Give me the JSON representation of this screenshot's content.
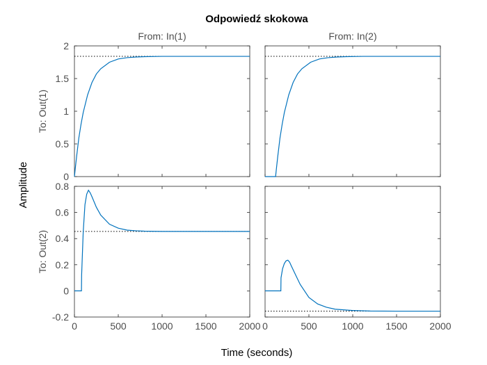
{
  "chart_data": {
    "type": "line",
    "title": "Odpowiedź skokowa",
    "xlabel": "Time (seconds)",
    "ylabel": "Amplitude",
    "grid": false,
    "colors": {
      "trace": "#0072bd",
      "reference": "#000000"
    },
    "columns": [
      "From: In(1)",
      "From: In(2)"
    ],
    "rows": [
      {
        "label": "To: Out(1)",
        "ylim": [
          0,
          2
        ],
        "yticks": [
          "0",
          "0.5",
          "1",
          "1.5",
          "2"
        ],
        "ytick_values": [
          0,
          0.5,
          1,
          1.5,
          2
        ]
      },
      {
        "label": "To: Out(2)",
        "ylim": [
          -0.2,
          0.8
        ],
        "yticks": [
          "-0.2",
          "0",
          "0.2",
          "0.4",
          "0.6",
          "0.8"
        ],
        "ytick_values": [
          -0.2,
          0,
          0.2,
          0.4,
          0.6,
          0.8
        ]
      }
    ],
    "xlim": [
      0,
      2000
    ],
    "xticks": [
      "0",
      "500",
      "1000",
      "1500",
      "2000"
    ],
    "xtick_values": [
      0,
      500,
      1000,
      1500,
      2000
    ],
    "subplots": [
      {
        "row": 0,
        "col": 0,
        "final_value": 1.84,
        "x": [
          0,
          10,
          25,
          50,
          75,
          100,
          150,
          200,
          250,
          300,
          400,
          500,
          600,
          700,
          800,
          1000,
          1200,
          1500,
          2000
        ],
        "y": [
          0,
          0.13,
          0.31,
          0.59,
          0.8,
          0.98,
          1.25,
          1.44,
          1.57,
          1.65,
          1.75,
          1.8,
          1.82,
          1.83,
          1.835,
          1.84,
          1.84,
          1.84,
          1.84
        ]
      },
      {
        "row": 0,
        "col": 1,
        "final_value": 1.84,
        "x": [
          0,
          120,
          130,
          145,
          170,
          195,
          220,
          270,
          320,
          370,
          420,
          520,
          620,
          720,
          820,
          920,
          1120,
          1500,
          2000
        ],
        "y": [
          0,
          0,
          0.13,
          0.31,
          0.59,
          0.8,
          0.98,
          1.25,
          1.44,
          1.57,
          1.65,
          1.75,
          1.8,
          1.82,
          1.83,
          1.835,
          1.84,
          1.84,
          1.84
        ]
      },
      {
        "row": 1,
        "col": 0,
        "final_value": 0.455,
        "x": [
          0,
          80,
          82,
          100,
          120,
          140,
          160,
          180,
          200,
          250,
          300,
          400,
          500,
          600,
          700,
          800,
          1000,
          1500,
          2000
        ],
        "y": [
          0,
          0,
          0.12,
          0.45,
          0.66,
          0.74,
          0.77,
          0.75,
          0.72,
          0.64,
          0.58,
          0.51,
          0.48,
          0.465,
          0.46,
          0.457,
          0.455,
          0.455,
          0.455
        ]
      },
      {
        "row": 1,
        "col": 1,
        "final_value": -0.155,
        "x": [
          0,
          180,
          182,
          200,
          220,
          240,
          260,
          280,
          300,
          350,
          400,
          500,
          600,
          700,
          800,
          1000,
          1200,
          1500,
          2000
        ],
        "y": [
          0,
          0,
          0.1,
          0.17,
          0.21,
          0.23,
          0.235,
          0.22,
          0.19,
          0.12,
          0.05,
          -0.05,
          -0.1,
          -0.125,
          -0.14,
          -0.15,
          -0.154,
          -0.155,
          -0.155
        ]
      }
    ]
  }
}
